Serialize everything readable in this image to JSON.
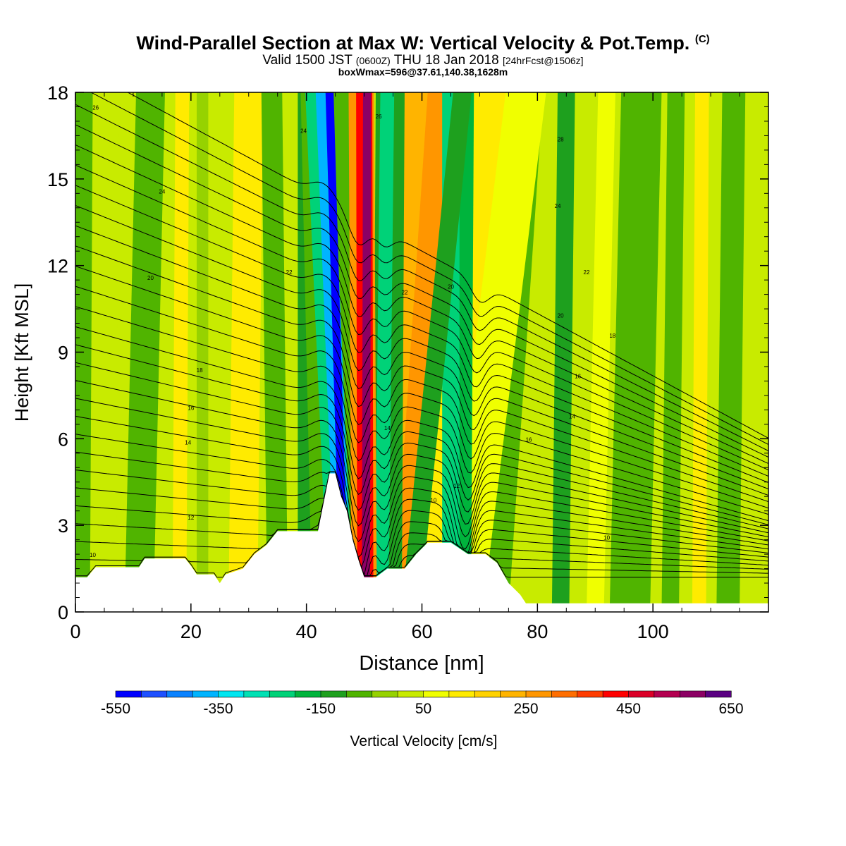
{
  "title": {
    "main": "Wind-Parallel Section at Max W: Vertical Velocity & Pot.Temp.",
    "copyright": "(C)",
    "valid_prefix": "Valid 1500 JST",
    "valid_utc": "(0600Z)",
    "valid_suffix": "THU 18 Jan 2018",
    "forecast": "[24hrFcst@1506z]",
    "box_info": "boxWmax=596@37.61,140.38,1628m"
  },
  "chart_data": {
    "type": "heatmap",
    "xlabel": "Distance [nm]",
    "ylabel": "Height [Kft MSL]",
    "xlim": [
      0,
      120
    ],
    "ylim": [
      0,
      18
    ],
    "x_ticks": [
      0,
      20,
      40,
      60,
      80,
      100
    ],
    "y_ticks": [
      0,
      3,
      6,
      9,
      12,
      15,
      18
    ],
    "colorbar": {
      "label": "Vertical Velocity [cm/s]",
      "min": -550,
      "max": 650,
      "step": 50,
      "tick_labels": [
        "-550",
        "-350",
        "-150",
        "50",
        "250",
        "450",
        "650"
      ],
      "colors": [
        "#0000ff",
        "#1e50ff",
        "#0a82ff",
        "#00b4ff",
        "#00e6f0",
        "#00e1b4",
        "#00d278",
        "#00b43c",
        "#1ea01e",
        "#50b400",
        "#96d200",
        "#c8eb00",
        "#f0ff00",
        "#ffeb00",
        "#ffd200",
        "#ffb400",
        "#ff9600",
        "#ff6e00",
        "#ff3c00",
        "#ff0000",
        "#dc0028",
        "#b40050",
        "#8c0064",
        "#5a0082"
      ]
    },
    "terrain_kft": [
      [
        0,
        1.2
      ],
      [
        2,
        1.2
      ],
      [
        3.5,
        1.55
      ],
      [
        11,
        1.55
      ],
      [
        12,
        1.85
      ],
      [
        19,
        1.85
      ],
      [
        20,
        1.6
      ],
      [
        21,
        1.3
      ],
      [
        24,
        1.3
      ],
      [
        25,
        1.0
      ],
      [
        26,
        1.3
      ],
      [
        29,
        1.5
      ],
      [
        31,
        2.0
      ],
      [
        33,
        2.3
      ],
      [
        35,
        2.8
      ],
      [
        42,
        2.8
      ],
      [
        43,
        3.8
      ],
      [
        44,
        4.8
      ],
      [
        45,
        4.8
      ],
      [
        46,
        4.0
      ],
      [
        47,
        3.5
      ],
      [
        48,
        2.5
      ],
      [
        49,
        1.8
      ],
      [
        50,
        1.2
      ],
      [
        52,
        1.2
      ],
      [
        54,
        1.5
      ],
      [
        57,
        1.5
      ],
      [
        59,
        2.0
      ],
      [
        61,
        2.4
      ],
      [
        65,
        2.4
      ],
      [
        68,
        2.0
      ],
      [
        71,
        2.0
      ],
      [
        73,
        1.7
      ],
      [
        75,
        1.0
      ],
      [
        77,
        0.6
      ],
      [
        78,
        0.3
      ],
      [
        120,
        0.3
      ]
    ],
    "theta_levels_C": [
      10,
      12,
      14,
      16,
      18,
      20,
      22,
      24,
      26,
      28,
      30
    ],
    "wave_features": [
      {
        "type": "downdraft",
        "x_nm": 46,
        "w_cm_s": -550
      },
      {
        "type": "updraft",
        "x_nm": 50,
        "w_cm_s": 596
      },
      {
        "type": "downdraft",
        "x_nm": 54,
        "w_cm_s": -200
      },
      {
        "type": "updraft",
        "x_nm": 60,
        "w_cm_s": 200
      },
      {
        "type": "downdraft",
        "x_nm": 66,
        "w_cm_s": -250
      }
    ]
  }
}
